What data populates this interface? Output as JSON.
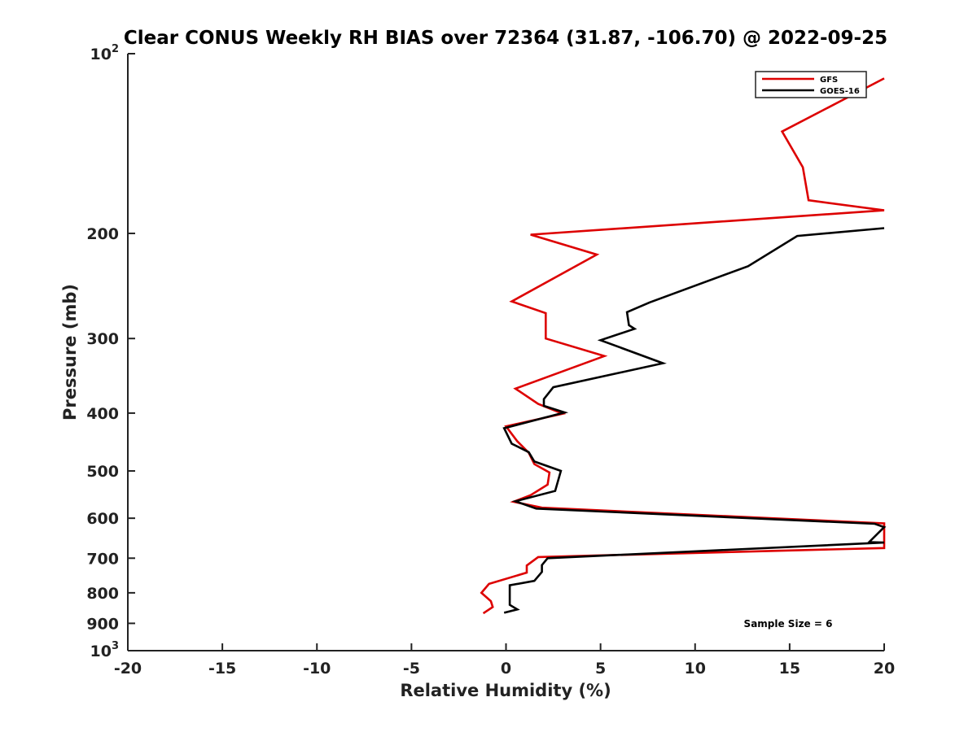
{
  "chart_data": {
    "type": "line",
    "title": "Clear CONUS Weekly RH BIAS over 72364 (31.87, -106.70) @ 2022-09-25",
    "xlabel": "Relative Humidity (%)",
    "ylabel": "Pressure (mb)",
    "xlim": [
      -20,
      20
    ],
    "ylim": [
      100,
      1000
    ],
    "y_scale": "log",
    "y_reversed": true,
    "grid": false,
    "legend_position": "top-right",
    "xticks": [
      "-20",
      "-15",
      "-10",
      "-5",
      "0",
      "5",
      "10",
      "15",
      "20"
    ],
    "yticks": [
      {
        "value": 100,
        "base": "10",
        "exp": "2"
      },
      {
        "value": 200,
        "label": "200"
      },
      {
        "value": 300,
        "label": "300"
      },
      {
        "value": 400,
        "label": "400"
      },
      {
        "value": 500,
        "label": "500"
      },
      {
        "value": 600,
        "label": "600"
      },
      {
        "value": 700,
        "label": "700"
      },
      {
        "value": 800,
        "label": "800"
      },
      {
        "value": 900,
        "label": "900"
      },
      {
        "value": 1000,
        "base": "10",
        "exp": "3"
      }
    ],
    "annotation": "Sample Size = 6",
    "series": [
      {
        "name": "GFS",
        "color": "#dd0000",
        "points": [
          [
            20.0,
            110
          ],
          [
            14.6,
            135
          ],
          [
            15.7,
            155
          ],
          [
            16.0,
            176
          ],
          [
            20.0,
            183
          ],
          [
            1.3,
            201
          ],
          [
            4.8,
            217
          ],
          [
            0.3,
            260
          ],
          [
            2.1,
            272
          ],
          [
            2.1,
            300
          ],
          [
            5.2,
            321
          ],
          [
            0.5,
            364
          ],
          [
            1.7,
            386
          ],
          [
            3.0,
            401
          ],
          [
            0.0,
            421
          ],
          [
            0.6,
            446
          ],
          [
            1.2,
            466
          ],
          [
            1.5,
            487
          ],
          [
            2.3,
            503
          ],
          [
            2.2,
            527
          ],
          [
            1.3,
            549
          ],
          [
            0.4,
            563
          ],
          [
            1.9,
            576
          ],
          [
            20.0,
            612
          ],
          [
            20.0,
            673
          ],
          [
            1.7,
            697
          ],
          [
            1.1,
            720
          ],
          [
            1.1,
            740
          ],
          [
            -0.9,
            773
          ],
          [
            -1.3,
            800
          ],
          [
            -0.8,
            826
          ],
          [
            -0.7,
            845
          ],
          [
            -1.2,
            866
          ]
        ]
      },
      {
        "name": "GOES-16",
        "color": "#000000",
        "points": [
          [
            20.0,
            196
          ],
          [
            15.4,
            202
          ],
          [
            12.8,
            227
          ],
          [
            7.6,
            261
          ],
          [
            6.4,
            271
          ],
          [
            6.5,
            285
          ],
          [
            6.8,
            289
          ],
          [
            5.0,
            302
          ],
          [
            8.3,
            330
          ],
          [
            2.5,
            362
          ],
          [
            2.0,
            379
          ],
          [
            2.0,
            389
          ],
          [
            3.1,
            399
          ],
          [
            -0.1,
            424
          ],
          [
            0.3,
            450
          ],
          [
            1.2,
            465
          ],
          [
            1.5,
            482
          ],
          [
            2.9,
            500
          ],
          [
            2.6,
            540
          ],
          [
            0.5,
            562
          ],
          [
            1.6,
            578
          ],
          [
            19.5,
            613
          ],
          [
            20.0,
            621
          ],
          [
            19.2,
            658
          ],
          [
            20.0,
            659
          ],
          [
            2.2,
            700
          ],
          [
            1.9,
            719
          ],
          [
            1.9,
            738
          ],
          [
            1.5,
            764
          ],
          [
            0.2,
            777
          ],
          [
            0.2,
            806
          ],
          [
            0.2,
            838
          ],
          [
            0.6,
            853
          ],
          [
            -0.1,
            864
          ]
        ]
      }
    ]
  }
}
